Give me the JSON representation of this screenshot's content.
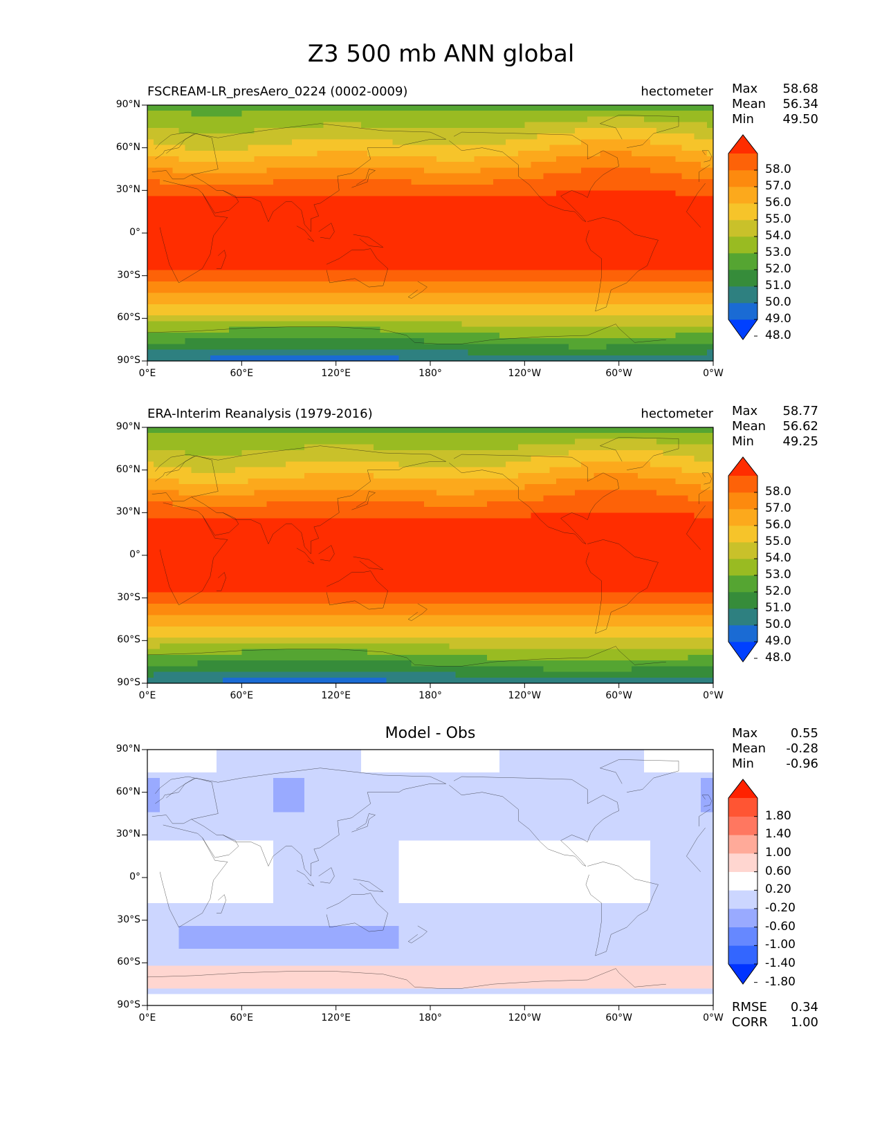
{
  "figure": {
    "title": "Z3 500 mb ANN global"
  },
  "axes": {
    "y_ticks": [
      "90°N",
      "60°N",
      "30°N",
      "0°",
      "30°S",
      "60°S",
      "90°S"
    ],
    "x_ticks": [
      "0°E",
      "60°E",
      "120°E",
      "180°",
      "120°W",
      "60°W",
      "0°W"
    ]
  },
  "panels": [
    {
      "title_left": "FSCREAM-LR_presAero_0224 (0002-0009)",
      "title_right": "hectometer",
      "title_center": "",
      "stats": [
        {
          "label": "Max",
          "value": "58.68"
        },
        {
          "label": "Mean",
          "value": "56.34"
        },
        {
          "label": "Min",
          "value": "49.50"
        }
      ],
      "colorbar": {
        "ticks": [
          "58.0",
          "57.0",
          "56.0",
          "55.0",
          "54.0",
          "53.0",
          "52.0",
          "51.0",
          "50.0",
          "49.0",
          "48.0"
        ],
        "colors": [
          "#0040ff",
          "#1a6bd4",
          "#2e8080",
          "#368c3a",
          "#55a532",
          "#99bb22",
          "#c9c12a",
          "#f6c42a",
          "#fca91c",
          "#fd8a0e",
          "#fd6208",
          "#ff2d00"
        ]
      },
      "extra_stats": []
    },
    {
      "title_left": "ERA-Interim Reanalysis (1979-2016)",
      "title_right": "hectometer",
      "title_center": "",
      "stats": [
        {
          "label": "Max",
          "value": "58.77"
        },
        {
          "label": "Mean",
          "value": "56.62"
        },
        {
          "label": "Min",
          "value": "49.25"
        }
      ],
      "colorbar": {
        "ticks": [
          "58.0",
          "57.0",
          "56.0",
          "55.0",
          "54.0",
          "53.0",
          "52.0",
          "51.0",
          "50.0",
          "49.0",
          "48.0"
        ],
        "colors": [
          "#0040ff",
          "#1a6bd4",
          "#2e8080",
          "#368c3a",
          "#55a532",
          "#99bb22",
          "#c9c12a",
          "#f6c42a",
          "#fca91c",
          "#fd8a0e",
          "#fd6208",
          "#ff2d00"
        ]
      },
      "extra_stats": []
    },
    {
      "title_left": "",
      "title_right": "",
      "title_center": "Model - Obs",
      "stats": [
        {
          "label": "Max",
          "value": "0.55"
        },
        {
          "label": "Mean",
          "value": "-0.28"
        },
        {
          "label": "Min",
          "value": "-0.96"
        }
      ],
      "colorbar": {
        "ticks": [
          "1.80",
          "1.40",
          "1.00",
          "0.60",
          "0.20",
          "-0.20",
          "-0.60",
          "-1.00",
          "-1.40",
          "-1.80"
        ],
        "colors": [
          "#0033ff",
          "#3366ff",
          "#6688ff",
          "#99aaff",
          "#ccd6ff",
          "#ffffff",
          "#ffd6d0",
          "#ffaa99",
          "#ff7760",
          "#ff5533",
          "#ff2200"
        ]
      },
      "extra_stats": [
        {
          "label": "RMSE",
          "value": "0.34"
        },
        {
          "label": "CORR",
          "value": "1.00"
        }
      ]
    }
  ]
}
